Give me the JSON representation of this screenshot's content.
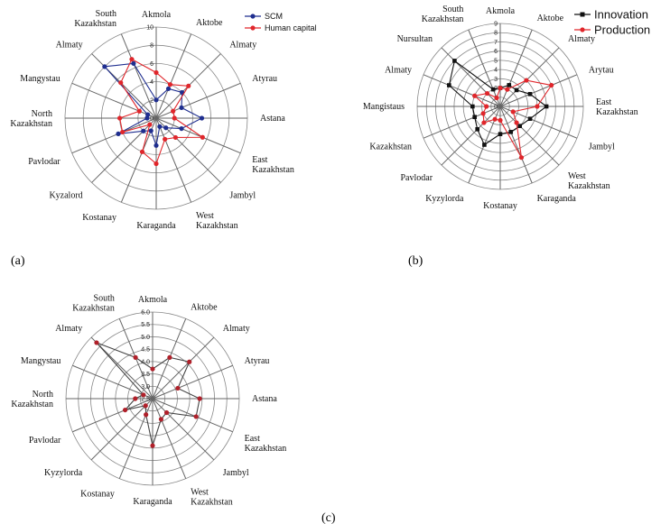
{
  "captions": {
    "a": "(a)",
    "b": "(b)",
    "c": "(c)"
  },
  "chart_data": [
    {
      "type": "radar",
      "panel": "(a)",
      "rlim": [
        0,
        10
      ],
      "ticks": [
        "0",
        "2",
        "4",
        "6",
        "8",
        "10"
      ],
      "legend_position": "top-right",
      "categories": [
        "Akmola",
        "Aktobe",
        "Almaty",
        "Atyrau",
        "Astana",
        "East Kazakhstan",
        "Jambyl",
        "West Kazakhstan",
        "Karaganda",
        "Kostanay",
        "Kyzalord",
        "Pavlodar",
        "North Kazakhstan",
        "Mangystau",
        "Almaty",
        "South Kazakhstan"
      ],
      "series": [
        {
          "name": "SCM",
          "color": "#1f2e8f",
          "marker": "circle",
          "values": [
            2.0,
            3.5,
            4.0,
            3.0,
            5.0,
            3.0,
            1.5,
            1.0,
            3.0,
            1.5,
            2.0,
            4.5,
            1.0,
            1.0,
            8.0,
            6.5
          ]
        },
        {
          "name": "Human capital",
          "color": "#e0262b",
          "marker": "circle",
          "values": [
            5.0,
            4.0,
            5.0,
            2.0,
            2.0,
            5.5,
            3.0,
            2.5,
            5.0,
            4.0,
            1.0,
            4.0,
            4.0,
            2.0,
            5.5,
            7.0
          ]
        }
      ]
    },
    {
      "type": "radar",
      "panel": "(b)",
      "rlim": [
        0,
        9
      ],
      "ticks": [
        "0",
        "1",
        "2",
        "3",
        "4",
        "5",
        "6",
        "7",
        "8",
        "9"
      ],
      "legend_position": "top-right",
      "categories": [
        "Akmola",
        "Aktobe",
        "Almaty",
        "Arytau",
        "East Kazakhstan",
        "Jambyl",
        "West Kazakhstan",
        "Karaganda",
        "Kostanay",
        "Kyzylorda",
        "Pavlodar",
        "Kazakhstan",
        "Mangistaus",
        "Almaty",
        "Nursultan",
        "South Kazakhstan"
      ],
      "series": [
        {
          "name": "Innovation",
          "color": "#111111",
          "marker": "square",
          "values": [
            2.0,
            2.5,
            2.5,
            3.5,
            5.0,
            3.5,
            3.0,
            3.0,
            3.0,
            4.5,
            3.5,
            3.0,
            3.0,
            6.0,
            7.0,
            2.0
          ]
        },
        {
          "name": "Production",
          "color": "#e0262b",
          "marker": "circle",
          "values": [
            2.0,
            2.0,
            4.0,
            6.0,
            4.0,
            1.5,
            2.5,
            6.0,
            1.5,
            1.5,
            2.5,
            2.0,
            1.5,
            3.0,
            2.0,
            1.0
          ]
        }
      ]
    },
    {
      "type": "radar",
      "panel": "(c)",
      "rlim": [
        2.5,
        6.0
      ],
      "ticks": [
        "2.5",
        "3.0",
        "3.5",
        "4.0",
        "4.5",
        "5.0",
        "5.5",
        "6.0"
      ],
      "categories": [
        "Akmola",
        "Aktobe",
        "Almaty",
        "Atyrau",
        "Astana",
        "East Kazakhstan",
        "Jambyl",
        "West Kazakhstan",
        "Karaganda",
        "Kostanay",
        "Kyzylorda",
        "Pavlodar",
        "North Kazakhstan",
        "Mangystau",
        "Almaty",
        "South Kazakhstan"
      ],
      "series": [
        {
          "name": "",
          "color": "#b0202a",
          "marker": "circle",
          "line_color": "#444444",
          "values": [
            3.7,
            4.3,
            4.6,
            3.6,
            4.4,
            4.4,
            3.3,
            3.4,
            4.4,
            3.2,
            2.9,
            3.7,
            3.2,
            2.9,
            5.7,
            4.3
          ]
        }
      ]
    }
  ]
}
